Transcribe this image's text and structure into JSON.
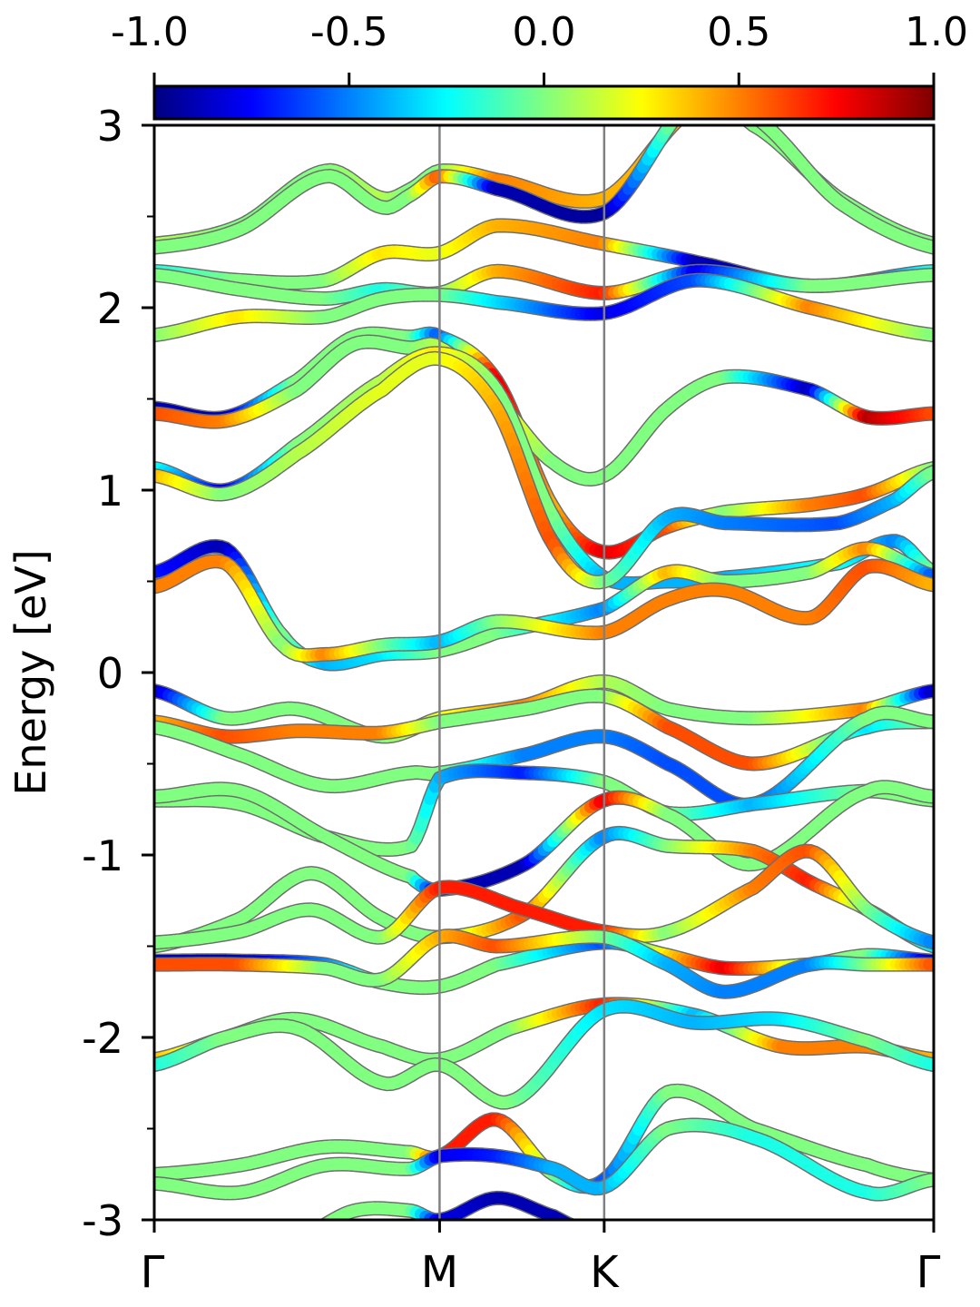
{
  "chart_data": {
    "type": "line",
    "title": "",
    "xlabel": "",
    "ylabel": "Energy [eV]",
    "ylim": [
      -3,
      3
    ],
    "grid": false,
    "legend": "none",
    "y_ticks_major": [
      "-3",
      "-2",
      "-1",
      "0",
      "1",
      "2",
      "3"
    ],
    "y_ticks_minor": [
      -2.5,
      -1.5,
      -0.5,
      0.5,
      1.5,
      2.5
    ],
    "x_ticks": [
      {
        "label": "Γ",
        "k": 0.0
      },
      {
        "label": "M",
        "k": 1.0
      },
      {
        "label": "K",
        "k": 1.577
      },
      {
        "label": "Γ",
        "k": 2.732
      }
    ],
    "colorbar": {
      "range": [
        -1.0,
        1.0
      ],
      "tick_labels": [
        "-1.0",
        "-0.5",
        "0.0",
        "0.5",
        "1.0"
      ],
      "colormap": "jet",
      "colors": [
        "#00007f",
        "#0000ff",
        "#0080ff",
        "#00ffff",
        "#80ff80",
        "#ffff00",
        "#ff8000",
        "#ff0000",
        "#7f0000"
      ]
    },
    "band_edge_color": "#6e6e6e",
    "vline_color": "#808080",
    "series": [
      {
        "k": [
          0,
          0.3,
          0.6,
          0.8,
          0.9,
          1.0,
          1.2,
          1.577,
          1.9,
          2.1,
          2.4,
          2.732
        ],
        "e": [
          2.35,
          2.45,
          2.75,
          2.6,
          2.65,
          2.75,
          2.7,
          2.6,
          3.1,
          3.0,
          2.6,
          2.35
        ],
        "c": [
          0.1,
          0.0,
          0.0,
          0.1,
          0.0,
          0.0,
          0.5,
          0.4,
          0.4,
          0.0,
          0.0,
          0.0
        ]
      },
      {
        "k": [
          0,
          0.3,
          0.6,
          0.8,
          0.9,
          1.0,
          1.2,
          1.577,
          1.9,
          2.1,
          2.4,
          2.732
        ],
        "e": [
          2.33,
          2.43,
          2.72,
          2.55,
          2.62,
          2.72,
          2.65,
          2.52,
          3.15,
          3.05,
          2.58,
          2.33
        ],
        "c": [
          0.0,
          0.0,
          0.0,
          0.0,
          0.0,
          0.6,
          -0.9,
          -0.95,
          0.3,
          0.0,
          0.0,
          0.0
        ]
      },
      {
        "k": [
          0,
          0.3,
          0.6,
          0.8,
          1.0,
          1.2,
          1.577,
          1.9,
          2.3,
          2.732
        ],
        "e": [
          2.2,
          2.15,
          2.15,
          2.3,
          2.3,
          2.45,
          2.35,
          2.25,
          2.12,
          2.2
        ],
        "c": [
          -0.2,
          0.0,
          0.0,
          0.3,
          0.2,
          0.4,
          0.5,
          -0.9,
          -0.9,
          -0.2
        ]
      },
      {
        "k": [
          0,
          0.3,
          0.6,
          0.8,
          1.0,
          1.2,
          1.577,
          1.9,
          2.3,
          2.732
        ],
        "e": [
          2.18,
          2.1,
          2.05,
          2.1,
          2.08,
          2.2,
          2.08,
          2.2,
          2.12,
          2.18
        ],
        "c": [
          0.0,
          0.0,
          0.0,
          -0.2,
          0.0,
          0.4,
          0.7,
          -0.8,
          0.0,
          0.0
        ]
      },
      {
        "k": [
          0,
          0.3,
          0.6,
          0.8,
          1.0,
          1.2,
          1.577,
          1.9,
          2.3,
          2.732
        ],
        "e": [
          1.85,
          1.95,
          1.95,
          2.05,
          2.07,
          2.03,
          1.97,
          2.15,
          2.0,
          1.85
        ],
        "c": [
          0.0,
          0.3,
          0.0,
          0.0,
          0.0,
          -0.3,
          -0.8,
          -0.6,
          0.5,
          0.0
        ]
      },
      {
        "k": [
          0,
          0.25,
          0.5,
          0.7,
          0.9,
          1.0,
          1.2,
          1.4,
          1.577,
          1.8,
          2.0,
          2.3,
          2.5,
          2.732
        ],
        "e": [
          1.45,
          1.4,
          1.6,
          1.84,
          1.84,
          1.84,
          1.6,
          0.9,
          0.66,
          0.8,
          0.88,
          0.92,
          0.98,
          1.12
        ],
        "c": [
          -0.9,
          -0.9,
          0.0,
          0.0,
          0.0,
          -0.6,
          0.8,
          0.4,
          0.8,
          0.6,
          0.0,
          0.5,
          0.6,
          0.0
        ]
      },
      {
        "k": [
          0,
          0.25,
          0.5,
          0.7,
          0.9,
          1.0,
          1.2,
          1.4,
          1.577,
          1.8,
          2.0,
          2.3,
          2.5,
          2.732
        ],
        "e": [
          1.42,
          1.38,
          1.55,
          1.8,
          1.78,
          1.78,
          1.5,
          1.15,
          1.08,
          1.45,
          1.62,
          1.55,
          1.4,
          1.42
        ],
        "c": [
          0.6,
          0.5,
          0.0,
          0.0,
          0.0,
          0.1,
          0.3,
          0.0,
          0.0,
          0.0,
          0.0,
          -0.9,
          0.9,
          0.6
        ]
      },
      {
        "k": [
          0,
          0.25,
          0.5,
          0.8,
          1.0,
          1.2,
          1.4,
          1.577,
          1.8,
          2.0,
          2.4,
          2.6,
          2.732
        ],
        "e": [
          1.12,
          1.0,
          1.25,
          1.6,
          1.75,
          1.55,
          0.85,
          0.52,
          0.5,
          0.52,
          0.6,
          0.72,
          0.55
        ],
        "c": [
          -0.2,
          -0.8,
          0.0,
          0.1,
          0.3,
          0.0,
          0.0,
          -0.4,
          -0.4,
          -0.4,
          -0.2,
          -0.5,
          0.0
        ]
      },
      {
        "k": [
          0,
          0.25,
          0.5,
          0.8,
          1.0,
          1.2,
          1.4,
          1.577,
          1.8,
          2.0,
          2.4,
          2.6,
          2.732
        ],
        "e": [
          1.08,
          0.98,
          1.2,
          1.55,
          1.72,
          1.45,
          0.7,
          0.5,
          0.85,
          0.82,
          0.82,
          0.95,
          1.1
        ],
        "c": [
          0.4,
          0.0,
          0.1,
          0.2,
          0.2,
          0.4,
          0.6,
          0.0,
          -0.4,
          -0.5,
          -0.6,
          -0.4,
          0.0
        ]
      },
      {
        "k": [
          0,
          0.25,
          0.45,
          0.6,
          0.8,
          1.0,
          1.2,
          1.577,
          1.8,
          2.0,
          2.3,
          2.5,
          2.732
        ],
        "e": [
          0.55,
          0.68,
          0.2,
          0.05,
          0.1,
          0.12,
          0.22,
          0.35,
          0.55,
          0.5,
          0.55,
          0.68,
          0.53
        ],
        "c": [
          -0.7,
          -0.9,
          0.0,
          -0.4,
          -0.3,
          0.0,
          0.0,
          -0.5,
          0.4,
          0.0,
          0.0,
          0.5,
          -0.6
        ]
      },
      {
        "k": [
          0,
          0.25,
          0.45,
          0.6,
          0.8,
          1.0,
          1.2,
          1.577,
          1.8,
          2.0,
          2.3,
          2.5,
          2.732
        ],
        "e": [
          0.47,
          0.6,
          0.15,
          0.1,
          0.15,
          0.17,
          0.28,
          0.22,
          0.4,
          0.45,
          0.3,
          0.58,
          0.48
        ],
        "c": [
          0.5,
          0.5,
          0.0,
          0.5,
          0.0,
          -0.4,
          0.0,
          0.5,
          0.5,
          0.5,
          0.5,
          0.6,
          0.4
        ]
      },
      {
        "k": [
          0,
          0.25,
          0.5,
          0.8,
          1.0,
          1.3,
          1.577,
          1.8,
          2.1,
          2.5,
          2.732
        ],
        "e": [
          -0.1,
          -0.25,
          -0.2,
          -0.35,
          -0.25,
          -0.18,
          -0.05,
          -0.2,
          -0.25,
          -0.2,
          -0.1
        ],
        "c": [
          -0.9,
          0.0,
          0.0,
          0.0,
          0.2,
          0.5,
          0.1,
          0.0,
          0.0,
          0.5,
          -0.9
        ]
      },
      {
        "k": [
          0,
          0.25,
          0.5,
          0.8,
          1.0,
          1.3,
          1.577,
          1.8,
          2.1,
          2.5,
          2.732
        ],
        "e": [
          -0.27,
          -0.35,
          -0.32,
          -0.33,
          -0.27,
          -0.2,
          -0.13,
          -0.3,
          -0.5,
          -0.3,
          -0.27
        ],
        "c": [
          0.4,
          0.6,
          0.5,
          0.5,
          0.0,
          0.0,
          0.0,
          0.6,
          0.6,
          -0.3,
          0.0
        ]
      },
      {
        "k": [
          0,
          0.3,
          0.6,
          0.9,
          1.0,
          1.3,
          1.577,
          1.8,
          2.1,
          2.5,
          2.732
        ],
        "e": [
          -0.3,
          -0.45,
          -0.62,
          -0.55,
          -0.55,
          -0.45,
          -0.35,
          -0.5,
          -0.72,
          -0.25,
          -0.27
        ],
        "c": [
          0.0,
          0.0,
          0.0,
          0.0,
          0.0,
          -0.5,
          -0.5,
          -0.6,
          -0.6,
          0.0,
          0.0
        ]
      },
      {
        "k": [
          0,
          0.3,
          0.6,
          0.9,
          1.0,
          1.3,
          1.577,
          1.8,
          2.1,
          2.5,
          2.732
        ],
        "e": [
          -0.7,
          -0.72,
          -0.9,
          -0.95,
          -0.58,
          -0.55,
          -0.6,
          -0.77,
          -0.72,
          -0.65,
          -0.7
        ],
        "c": [
          0.0,
          0.0,
          0.0,
          0.0,
          -0.4,
          -0.7,
          0.0,
          0.0,
          -0.4,
          0.0,
          0.0
        ]
      },
      {
        "k": [
          0,
          0.3,
          0.6,
          0.9,
          1.0,
          1.3,
          1.577,
          1.8,
          2.1,
          2.5,
          2.732
        ],
        "e": [
          -0.68,
          -0.65,
          -0.9,
          -1.12,
          -1.19,
          -1.05,
          -0.7,
          -0.78,
          -1.05,
          -0.65,
          -0.68
        ],
        "c": [
          0.0,
          0.0,
          0.0,
          0.0,
          -0.9,
          -0.9,
          0.8,
          0.0,
          0.0,
          0.0,
          0.0
        ]
      },
      {
        "k": [
          0,
          0.3,
          0.55,
          0.8,
          1.0,
          1.3,
          1.577,
          1.8,
          2.1,
          2.3,
          2.5,
          2.732
        ],
        "e": [
          -1.5,
          -1.35,
          -1.1,
          -1.35,
          -1.45,
          -1.32,
          -0.9,
          -0.95,
          -0.98,
          -1.15,
          -1.3,
          -1.5
        ],
        "c": [
          0.0,
          0.0,
          0.0,
          0.0,
          0.0,
          0.6,
          -0.5,
          0.0,
          0.5,
          0.7,
          0.0,
          -0.3
        ]
      },
      {
        "k": [
          0,
          0.3,
          0.55,
          0.8,
          1.0,
          1.3,
          1.577,
          1.8,
          2.1,
          2.3,
          2.5,
          2.732
        ],
        "e": [
          -1.48,
          -1.42,
          -1.3,
          -1.45,
          -1.18,
          -1.3,
          -1.42,
          -1.42,
          -1.18,
          -0.98,
          -1.3,
          -1.48
        ],
        "c": [
          0.0,
          0.0,
          0.0,
          0.0,
          0.7,
          0.7,
          0.7,
          0.0,
          0.5,
          0.6,
          0.0,
          -0.5
        ]
      },
      {
        "k": [
          0,
          0.3,
          0.6,
          0.8,
          1.0,
          1.2,
          1.577,
          1.8,
          2.0,
          2.3,
          2.5,
          2.732
        ],
        "e": [
          -1.58,
          -1.58,
          -1.6,
          -1.7,
          -1.72,
          -1.6,
          -1.48,
          -1.55,
          -1.62,
          -1.6,
          -1.55,
          -1.58
        ],
        "c": [
          -0.9,
          -0.9,
          -0.5,
          0.0,
          0.0,
          0.0,
          -0.6,
          0.3,
          0.8,
          0.0,
          0.0,
          -0.9
        ]
      },
      {
        "k": [
          0,
          0.3,
          0.6,
          0.8,
          1.0,
          1.2,
          1.577,
          1.8,
          2.0,
          2.3,
          2.5,
          2.732
        ],
        "e": [
          -1.6,
          -1.6,
          -1.62,
          -1.68,
          -1.45,
          -1.5,
          -1.45,
          -1.6,
          -1.75,
          -1.6,
          -1.6,
          -1.6
        ],
        "c": [
          0.6,
          0.6,
          0.0,
          0.0,
          0.4,
          0.6,
          0.0,
          -0.4,
          -0.5,
          -0.5,
          0.0,
          0.6
        ]
      },
      {
        "k": [
          0,
          0.25,
          0.5,
          0.8,
          1.0,
          1.25,
          1.577,
          1.9,
          2.2,
          2.5,
          2.732
        ],
        "e": [
          -2.12,
          -2.0,
          -1.9,
          -2.05,
          -2.12,
          -1.95,
          -1.82,
          -1.88,
          -2.05,
          -2.05,
          -2.12
        ],
        "c": [
          0.4,
          0.0,
          0.0,
          0.0,
          0.0,
          0.0,
          0.7,
          -0.4,
          0.5,
          0.5,
          0.4
        ]
      },
      {
        "k": [
          0,
          0.25,
          0.5,
          0.8,
          1.0,
          1.25,
          1.577,
          1.9,
          2.2,
          2.5,
          2.732
        ],
        "e": [
          -2.15,
          -2.0,
          -1.95,
          -2.25,
          -2.15,
          -2.35,
          -1.85,
          -1.92,
          -1.9,
          -2.02,
          -2.15
        ],
        "c": [
          -0.2,
          0.0,
          0.0,
          0.0,
          0.0,
          0.0,
          -0.3,
          -0.4,
          -0.3,
          0.0,
          -0.2
        ]
      },
      {
        "k": [
          0,
          0.3,
          0.6,
          0.9,
          1.0,
          1.2,
          1.4,
          1.577,
          1.8,
          2.1,
          2.5,
          2.732
        ],
        "e": [
          -2.75,
          -2.7,
          -2.6,
          -2.63,
          -2.65,
          -2.45,
          -2.75,
          -2.78,
          -2.3,
          -2.5,
          -2.7,
          -2.78
        ],
        "c": [
          0.0,
          0.0,
          0.0,
          0.0,
          0.7,
          0.7,
          0.0,
          -0.6,
          0.0,
          0.0,
          0.0,
          0.0
        ]
      },
      {
        "k": [
          0,
          0.3,
          0.6,
          0.9,
          1.0,
          1.2,
          1.4,
          1.577,
          1.8,
          2.1,
          2.5,
          2.732
        ],
        "e": [
          -2.8,
          -2.85,
          -2.7,
          -2.72,
          -2.65,
          -2.65,
          -2.72,
          -2.82,
          -2.5,
          -2.55,
          -2.85,
          -2.78
        ],
        "c": [
          0.0,
          0.0,
          0.0,
          0.0,
          -0.8,
          -0.7,
          -0.4,
          -0.4,
          0.0,
          -0.2,
          -0.2,
          0.0
        ]
      },
      {
        "k": [
          0.5,
          0.7,
          0.9,
          1.0,
          1.2,
          1.4,
          1.5
        ],
        "e": [
          -3.1,
          -2.95,
          -2.95,
          -3.0,
          -2.88,
          -2.98,
          -3.05
        ],
        "c": [
          0.0,
          0.0,
          0.0,
          -0.8,
          -0.9,
          -0.9,
          -0.9
        ]
      }
    ]
  }
}
